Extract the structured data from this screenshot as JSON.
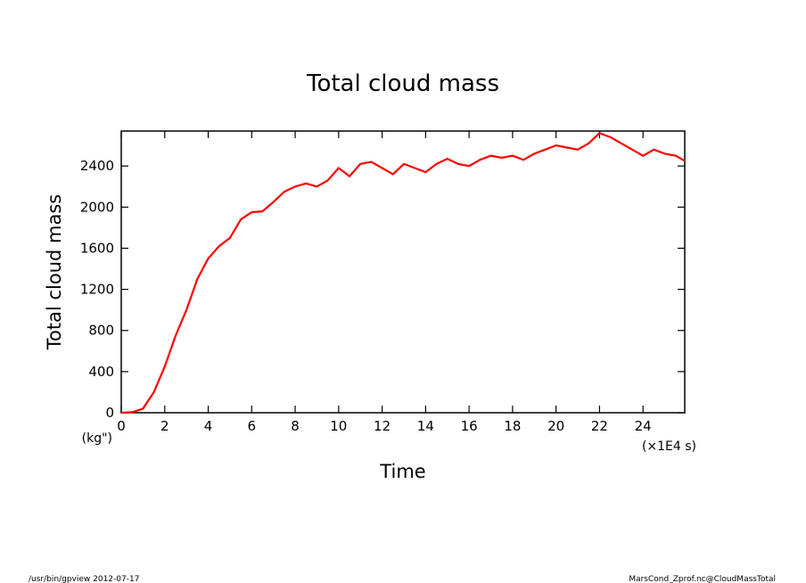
{
  "chart_data": {
    "type": "line",
    "title": "Total cloud mass",
    "x_label": "Time",
    "y_label": "Total cloud mass",
    "x_unit": "(×1E4 s)",
    "y_unit": "(kg\")",
    "footer_left": "/usr/bin/gpview  2012-07-17",
    "footer_right": "MarsCond_Zprof.nc@CloudMassTotal",
    "x": [
      0,
      0.5,
      1,
      1.5,
      2,
      2.5,
      3,
      3.5,
      4,
      4.5,
      5,
      5.5,
      6,
      6.5,
      7,
      7.5,
      8,
      8.5,
      9,
      9.5,
      10,
      10.5,
      11,
      11.5,
      12,
      12.5,
      13,
      13.5,
      14,
      14.5,
      15,
      15.5,
      16,
      16.5,
      17,
      17.5,
      18,
      18.5,
      19,
      19.5,
      20,
      20.5,
      21,
      21.5,
      22,
      22.5,
      23,
      23.5,
      24,
      24.5,
      25,
      25.5,
      25.92
    ],
    "series": [
      {
        "name": "Total cloud mass",
        "color": "#ff0000",
        "values": [
          0,
          5,
          40,
          200,
          450,
          750,
          1000,
          1300,
          1500,
          1620,
          1700,
          1880,
          1950,
          1960,
          2050,
          2150,
          2200,
          2230,
          2200,
          2260,
          2380,
          2300,
          2420,
          2440,
          2380,
          2320,
          2420,
          2380,
          2340,
          2420,
          2470,
          2420,
          2400,
          2460,
          2500,
          2480,
          2500,
          2460,
          2520,
          2560,
          2600,
          2580,
          2560,
          2620,
          2720,
          2680,
          2620,
          2560,
          2500,
          2560,
          2520,
          2500,
          2450
        ]
      }
    ],
    "xlim": [
      0,
      25.92
    ],
    "ylim": [
      0,
      2740
    ],
    "xticks": [
      0,
      2,
      4,
      6,
      8,
      10,
      12,
      14,
      16,
      18,
      20,
      22,
      24
    ],
    "yticks": [
      0,
      400,
      800,
      1200,
      1600,
      2000,
      2400
    ]
  }
}
